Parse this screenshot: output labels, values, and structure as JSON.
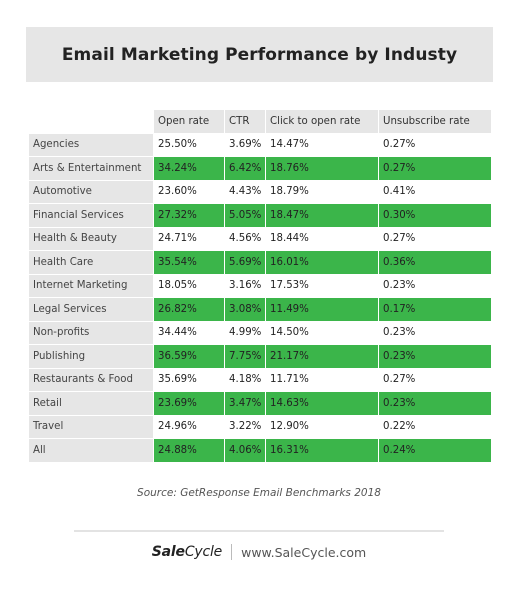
{
  "title": "Email Marketing Performance by Industy",
  "source": "Source: GetResponse Email Benchmarks 2018",
  "footer": {
    "logo_bold": "Sale",
    "logo_rest": "Cycle",
    "url": "www.SaleCycle.com"
  },
  "colors": {
    "highlight": "#3bb54a",
    "header_bg": "#e6e6e6"
  },
  "chart_data": {
    "type": "table",
    "title": "Email Marketing Performance by Industy",
    "columns": [
      "Open rate",
      "CTR",
      "Click to open rate",
      "Unsubscribe rate"
    ],
    "rows": [
      {
        "label": "Agencies",
        "values": [
          "25.50%",
          "3.69%",
          "14.47%",
          "0.27%"
        ],
        "highlight": false
      },
      {
        "label": "Arts & Entertainment",
        "values": [
          "34.24%",
          "6.42%",
          "18.76%",
          "0.27%"
        ],
        "highlight": true
      },
      {
        "label": "Automotive",
        "values": [
          "23.60%",
          "4.43%",
          "18.79%",
          "0.41%"
        ],
        "highlight": false
      },
      {
        "label": "Financial Services",
        "values": [
          "27.32%",
          "5.05%",
          "18.47%",
          "0.30%"
        ],
        "highlight": true
      },
      {
        "label": "Health & Beauty",
        "values": [
          "24.71%",
          "4.56%",
          "18.44%",
          "0.27%"
        ],
        "highlight": false
      },
      {
        "label": "Health Care",
        "values": [
          "35.54%",
          "5.69%",
          "16.01%",
          "0.36%"
        ],
        "highlight": true
      },
      {
        "label": "Internet Marketing",
        "values": [
          "18.05%",
          "3.16%",
          "17.53%",
          "0.23%"
        ],
        "highlight": false
      },
      {
        "label": "Legal Services",
        "values": [
          "26.82%",
          "3.08%",
          "11.49%",
          "0.17%"
        ],
        "highlight": true
      },
      {
        "label": "Non-profits",
        "values": [
          "34.44%",
          "4.99%",
          "14.50%",
          "0.23%"
        ],
        "highlight": false
      },
      {
        "label": "Publishing",
        "values": [
          "36.59%",
          "7.75%",
          "21.17%",
          "0.23%"
        ],
        "highlight": true
      },
      {
        "label": "Restaurants & Food",
        "values": [
          "35.69%",
          "4.18%",
          "11.71%",
          "0.27%"
        ],
        "highlight": false
      },
      {
        "label": "Retail",
        "values": [
          "23.69%",
          "3.47%",
          "14.63%",
          "0.23%"
        ],
        "highlight": true
      },
      {
        "label": "Travel",
        "values": [
          "24.96%",
          "3.22%",
          "12.90%",
          "0.22%"
        ],
        "highlight": false
      },
      {
        "label": "All",
        "values": [
          "24.88%",
          "4.06%",
          "16.31%",
          "0.24%"
        ],
        "highlight": true
      }
    ]
  }
}
